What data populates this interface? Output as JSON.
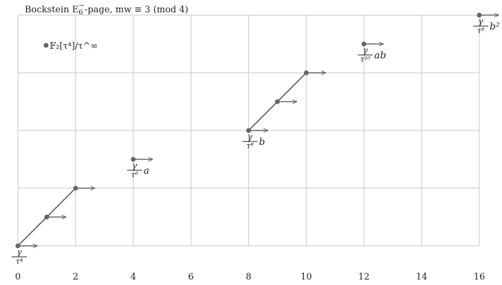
{
  "chart_data": {
    "type": "scatter",
    "title": {
      "prefix": "Bockstein E",
      "sub": "6",
      "sup": "−",
      "suffix": "-page, mw ≡ 3 (mod 4)"
    },
    "legend": {
      "label": "𝔽₂[τ⁴]/τ^∞",
      "placement": "top-left"
    },
    "xlim": [
      0,
      16
    ],
    "ylim": [
      0,
      8
    ],
    "x_ticks": [
      "0",
      "2",
      "4",
      "6",
      "8",
      "10",
      "12",
      "14",
      "16"
    ],
    "grid": true,
    "points": [
      {
        "x": 0,
        "y": 0
      },
      {
        "x": 1,
        "y": 1
      },
      {
        "x": 2,
        "y": 2
      },
      {
        "x": 4,
        "y": 3
      },
      {
        "x": 8,
        "y": 4
      },
      {
        "x": 9,
        "y": 5
      },
      {
        "x": 10,
        "y": 6
      },
      {
        "x": 12,
        "y": 7
      },
      {
        "x": 16,
        "y": 8
      }
    ],
    "lines": [
      {
        "from": [
          0,
          0
        ],
        "to": [
          2,
          2
        ]
      },
      {
        "from": [
          8,
          4
        ],
        "to": [
          10,
          6
        ]
      }
    ],
    "labels": [
      {
        "x": 0,
        "y": 0,
        "num": "γ",
        "den": "τ⁴",
        "tail": ""
      },
      {
        "x": 4,
        "y": 3,
        "num": "γ",
        "den": "τ⁶",
        "tail": "a"
      },
      {
        "x": 8,
        "y": 4,
        "num": "γ",
        "den": "τ⁸",
        "tail": "b"
      },
      {
        "x": 12,
        "y": 7,
        "num": "γ",
        "den": "τ¹⁰",
        "tail": "ab"
      },
      {
        "x": 16,
        "y": 8,
        "num": "γ",
        "den": "τ⁸",
        "tail": "b²"
      }
    ]
  }
}
